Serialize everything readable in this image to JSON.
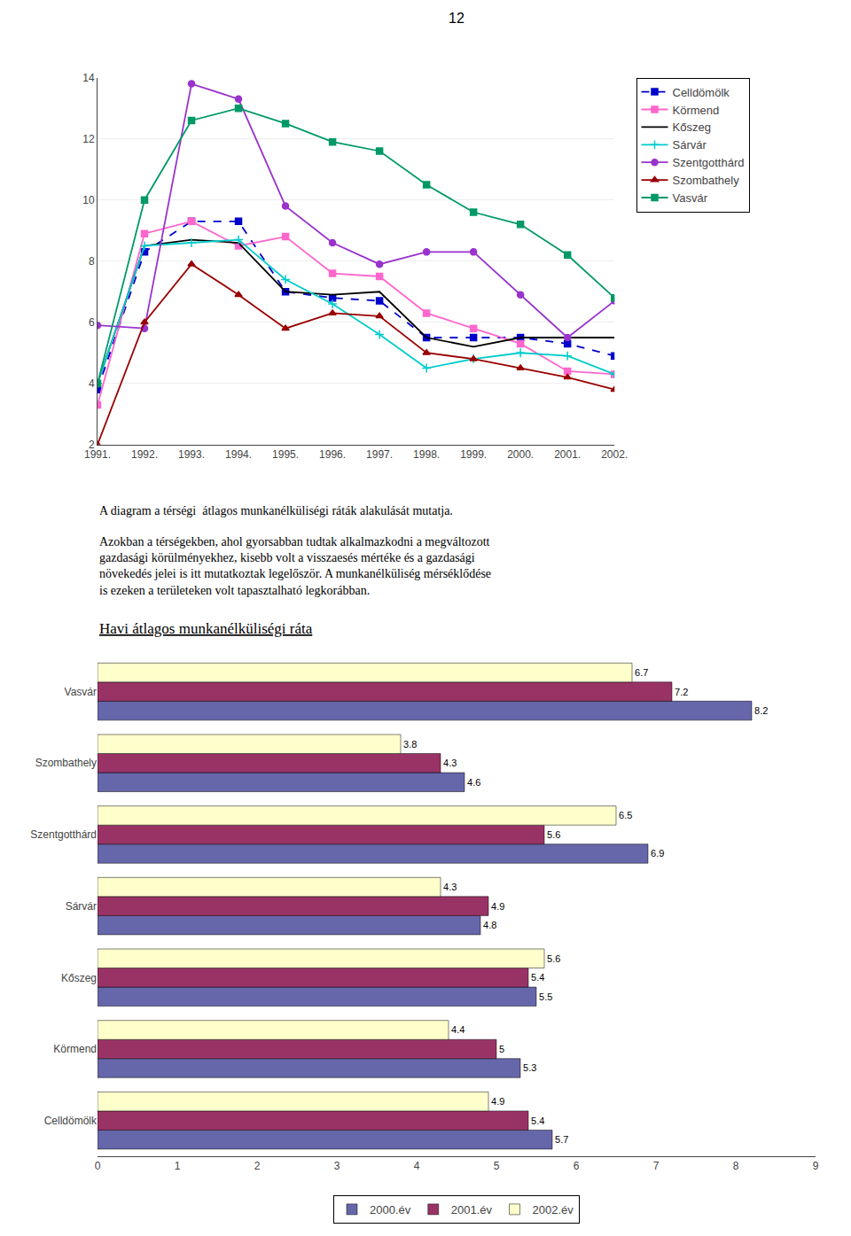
{
  "chart_data": [
    {
      "type": "line",
      "annotations": [
        "12",
        "A diagram a térségi  átlagos munkanélküliségi ráták alakulását mutatja.",
        "Azokban a térségekben, ahol gyorsabban tudtak alkalmazkodni a megváltozott\ngazdasági körülményekhez, kisebb volt a visszaesés mértéke és a gazdasági\nnövekedés jelei is itt mutatkoztak legelőször. A munkanélküliség mérséklődése\nis ezeken a területeken volt tapasztalható legkorábban."
      ],
      "x": [
        1991,
        1992,
        1993,
        1994,
        1995,
        1996,
        1997,
        1998,
        1999,
        2000,
        2001,
        2002
      ],
      "series": [
        {
          "name": "Celldömölk",
          "color": "#0000cc",
          "line_style": "dashed",
          "marker": "square",
          "values": [
            3.8,
            8.3,
            9.3,
            9.3,
            7.0,
            6.8,
            6.7,
            5.5,
            5.5,
            5.5,
            5.3,
            4.9
          ]
        },
        {
          "name": "Körmend",
          "color": "#ff66cc",
          "line_style": "solid",
          "marker": "square",
          "values": [
            3.3,
            8.9,
            9.3,
            8.5,
            8.8,
            7.6,
            7.5,
            6.3,
            5.8,
            5.3,
            4.4,
            4.3
          ]
        },
        {
          "name": "Kőszeg",
          "color": "#000000",
          "line_style": "solid",
          "marker": "none",
          "values": [
            4.0,
            8.5,
            8.7,
            8.6,
            7.0,
            6.9,
            7.0,
            5.5,
            5.2,
            5.5,
            5.5,
            5.5
          ]
        },
        {
          "name": "Sárvár",
          "color": "#00cccc",
          "line_style": "solid",
          "marker": "cross",
          "values": [
            4.0,
            8.5,
            8.6,
            8.7,
            7.4,
            6.6,
            5.6,
            4.5,
            4.8,
            5.0,
            4.9,
            4.3
          ]
        },
        {
          "name": "Szentgotthárd",
          "color": "#9933cc",
          "line_style": "solid",
          "marker": "circle",
          "values": [
            5.9,
            5.8,
            13.8,
            13.3,
            9.8,
            8.6,
            7.9,
            8.3,
            8.3,
            6.9,
            5.5,
            6.7
          ]
        },
        {
          "name": "Szombathely",
          "color": "#990000",
          "line_style": "solid",
          "marker": "triangle-up",
          "values": [
            2.0,
            6.0,
            7.9,
            6.9,
            5.8,
            6.3,
            6.2,
            5.0,
            4.8,
            4.5,
            4.2,
            3.8
          ]
        },
        {
          "name": "Vasvár",
          "color": "#009966",
          "line_style": "solid",
          "marker": "square",
          "values": [
            4.0,
            10.0,
            12.6,
            13.0,
            12.5,
            11.9,
            11.6,
            10.5,
            9.6,
            9.2,
            8.2,
            6.8
          ]
        }
      ],
      "xlim": [
        1991,
        2002
      ],
      "xticks": [
        {
          "value": 1991,
          "label": "1991."
        },
        {
          "value": 1992,
          "label": "1992."
        },
        {
          "value": 1993,
          "label": "1993."
        },
        {
          "value": 1994,
          "label": "1994."
        },
        {
          "value": 1995,
          "label": "1995."
        },
        {
          "value": 1996,
          "label": "1996."
        },
        {
          "value": 1997,
          "label": "1997."
        },
        {
          "value": 1998,
          "label": "1998."
        },
        {
          "value": 1999,
          "label": "1999."
        },
        {
          "value": 2000,
          "label": "2000."
        },
        {
          "value": 2001,
          "label": "2001."
        },
        {
          "value": 2002,
          "label": "2002."
        }
      ],
      "ylim": [
        2,
        14
      ],
      "yticks": [
        2,
        4,
        6,
        8,
        10,
        12,
        14
      ],
      "grid": true,
      "legend": "right"
    },
    {
      "type": "bar",
      "title": "Havi átlagos munkanélküliségi ráta",
      "orientation": "horizontal",
      "categories": [
        "Celldömölk",
        "Körmend",
        "Kőszeg",
        "Sárvár",
        "Szentgotthárd",
        "Szombathely",
        "Vasvár"
      ],
      "series": [
        {
          "name": "2000.év",
          "color": "#6666aa",
          "values": [
            5.7,
            5.3,
            5.5,
            4.8,
            6.9,
            4.6,
            8.2
          ]
        },
        {
          "name": "2001.év",
          "color": "#993366",
          "values": [
            5.4,
            5.0,
            5.4,
            4.9,
            5.6,
            4.3,
            7.2
          ]
        },
        {
          "name": "2002.év",
          "color": "#ffffcc",
          "values": [
            4.9,
            4.4,
            5.6,
            4.3,
            6.5,
            3.8,
            6.7
          ]
        }
      ],
      "xlim": [
        0,
        9
      ],
      "xticks": [
        0,
        1,
        2,
        3,
        4,
        5,
        6,
        7,
        8,
        9
      ],
      "grid": false,
      "data_labels": true,
      "legend": "bottom"
    }
  ]
}
